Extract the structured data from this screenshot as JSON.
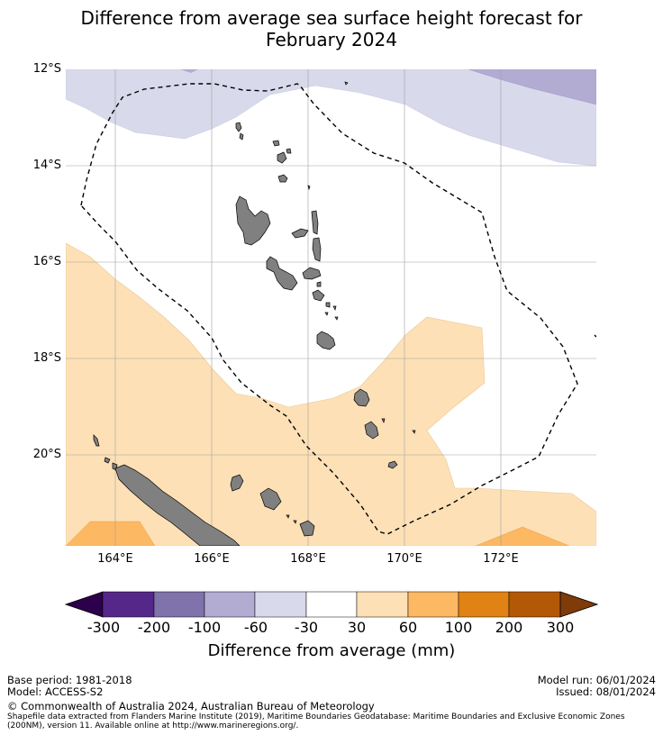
{
  "title_line1": "Difference from average sea surface height forecast for",
  "title_line2": "February 2024",
  "lat_labels": [
    "12°S",
    "14°S",
    "16°S",
    "18°S",
    "20°S"
  ],
  "lon_labels": [
    "164°E",
    "166°E",
    "168°E",
    "170°E",
    "172°E"
  ],
  "map_extent": {
    "lon_min": 162.95,
    "lon_max": 173.95,
    "lat_min": -21.9,
    "lat_max": -12.0
  },
  "colorbar": {
    "tick_labels": [
      "-300",
      "-200",
      "-100",
      "-60",
      "-30",
      "30",
      "60",
      "100",
      "200",
      "300"
    ],
    "colors": [
      "#2d004b",
      "#542788",
      "#8073ac",
      "#b2abd2",
      "#d8daeb",
      "#ffffff",
      "#fee0b6",
      "#fdb863",
      "#e08214",
      "#b35806",
      "#7f3b08"
    ],
    "title": "Difference from average (mm)"
  },
  "colors": {
    "land": "#808080",
    "grid": "#b0b0b0",
    "eez_line": "#000000"
  },
  "footer": {
    "base_period": "Base period: 1981-2018",
    "model": "Model: ACCESS-S2",
    "model_run": "Model run: 06/01/2024",
    "issued": "Issued: 08/01/2024",
    "copyright": "© Commonwealth of Australia 2024, Australian Bureau of Meteorology",
    "shapefile_line1": "Shapefile data extracted from Flanders Marine Institute (2019), Maritime Boundaries Geodatabase: Maritime Boundaries and Exclusive Economic Zones",
    "shapefile_line2": "(200NM), version 11. Available online at http://www.marineregions.org/."
  }
}
